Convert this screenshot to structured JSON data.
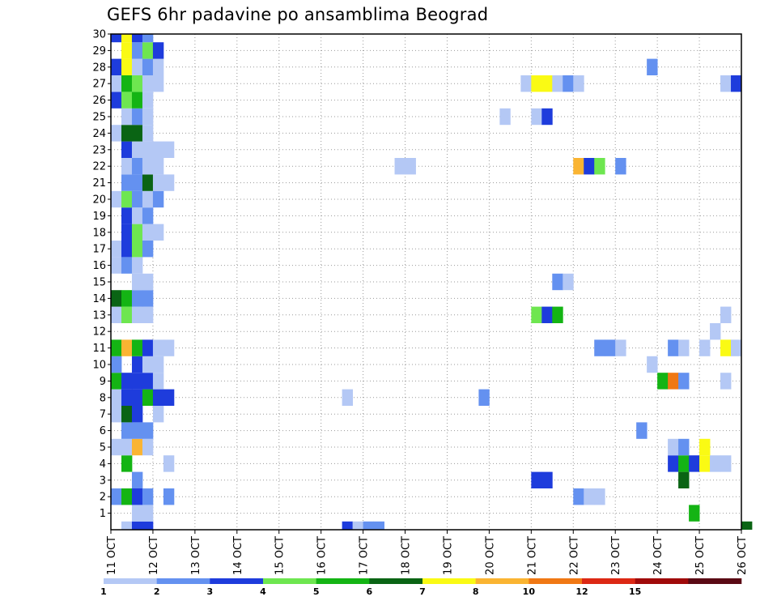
{
  "chart_data": {
    "type": "heatmap",
    "title": "GEFS 6hr padavine po ansamblima Beograd",
    "x_ticks": [
      "11 OCT",
      "12 OCT",
      "13 OCT",
      "14 OCT",
      "15 OCT",
      "16 OCT",
      "17 OCT",
      "18 OCT",
      "19 OCT",
      "20 OCT",
      "21 OCT",
      "22 OCT",
      "23 OCT",
      "24 OCT",
      "25 OCT",
      "26 OCT"
    ],
    "y_ticks": [
      "1",
      "2",
      "3",
      "4",
      "5",
      "6",
      "7",
      "8",
      "9",
      "10",
      "11",
      "12",
      "13",
      "14",
      "15",
      "16",
      "17",
      "18",
      "19",
      "20",
      "21",
      "22",
      "23",
      "24",
      "25",
      "26",
      "27",
      "28",
      "29",
      "30"
    ],
    "x_range": [
      "11 OCT",
      "26 OCT"
    ],
    "y_range": [
      0,
      30
    ],
    "time_step_hours": 6,
    "grid": "dotted",
    "legend": {
      "placement": "bottom",
      "levels": [
        "1",
        "2",
        "3",
        "4",
        "5",
        "6",
        "7",
        "8",
        "10",
        "12",
        "15",
        "20"
      ],
      "colors": [
        "#b4c8f5",
        "#6491f0",
        "#1e3cdc",
        "#6ee650",
        "#14b414",
        "#0a6414",
        "#fafa14",
        "#fab432",
        "#f07814",
        "#dc2814",
        "#a00a0a",
        "#5a0a14"
      ]
    },
    "cells": [
      {
        "member": 0,
        "t": 1,
        "c": 1
      },
      {
        "member": 0,
        "t": 2,
        "c": 3
      },
      {
        "member": 0,
        "t": 3,
        "c": 3
      },
      {
        "member": 0,
        "t": 22,
        "c": 3
      },
      {
        "member": 0,
        "t": 23,
        "c": 1
      },
      {
        "member": 0,
        "t": 24,
        "c": 2
      },
      {
        "member": 0,
        "t": 25,
        "c": 2
      },
      {
        "member": 0,
        "t": 60,
        "c": 6
      },
      {
        "member": 1,
        "t": 2,
        "c": 1
      },
      {
        "member": 1,
        "t": 3,
        "c": 1
      },
      {
        "member": 1,
        "t": 55,
        "c": 5
      },
      {
        "member": 2,
        "t": 0,
        "c": 2
      },
      {
        "member": 2,
        "t": 1,
        "c": 5
      },
      {
        "member": 2,
        "t": 2,
        "c": 3
      },
      {
        "member": 2,
        "t": 3,
        "c": 2
      },
      {
        "member": 2,
        "t": 5,
        "c": 2
      },
      {
        "member": 2,
        "t": 44,
        "c": 2
      },
      {
        "member": 2,
        "t": 45,
        "c": 1
      },
      {
        "member": 2,
        "t": 46,
        "c": 1
      },
      {
        "member": 3,
        "t": 2,
        "c": 2
      },
      {
        "member": 3,
        "t": 40,
        "c": 3
      },
      {
        "member": 3,
        "t": 41,
        "c": 3
      },
      {
        "member": 3,
        "t": 54,
        "c": 6
      },
      {
        "member": 4,
        "t": 1,
        "c": 5
      },
      {
        "member": 4,
        "t": 5,
        "c": 1
      },
      {
        "member": 4,
        "t": 53,
        "c": 3
      },
      {
        "member": 4,
        "t": 54,
        "c": 5
      },
      {
        "member": 4,
        "t": 55,
        "c": 3
      },
      {
        "member": 4,
        "t": 56,
        "c": 7
      },
      {
        "member": 4,
        "t": 57,
        "c": 1
      },
      {
        "member": 4,
        "t": 58,
        "c": 1
      },
      {
        "member": 5,
        "t": 0,
        "c": 1
      },
      {
        "member": 5,
        "t": 1,
        "c": 1
      },
      {
        "member": 5,
        "t": 2,
        "c": 8
      },
      {
        "member": 5,
        "t": 3,
        "c": 1
      },
      {
        "member": 5,
        "t": 53,
        "c": 1
      },
      {
        "member": 5,
        "t": 54,
        "c": 2
      },
      {
        "member": 5,
        "t": 56,
        "c": 7
      },
      {
        "member": 6,
        "t": 1,
        "c": 2
      },
      {
        "member": 6,
        "t": 2,
        "c": 2
      },
      {
        "member": 6,
        "t": 3,
        "c": 2
      },
      {
        "member": 6,
        "t": 50,
        "c": 2
      },
      {
        "member": 7,
        "t": 0,
        "c": 1
      },
      {
        "member": 7,
        "t": 1,
        "c": 6
      },
      {
        "member": 7,
        "t": 2,
        "c": 3
      },
      {
        "member": 7,
        "t": 4,
        "c": 1
      },
      {
        "member": 8,
        "t": 0,
        "c": 1
      },
      {
        "member": 8,
        "t": 1,
        "c": 3
      },
      {
        "member": 8,
        "t": 2,
        "c": 3
      },
      {
        "member": 8,
        "t": 3,
        "c": 5
      },
      {
        "member": 8,
        "t": 4,
        "c": 3
      },
      {
        "member": 8,
        "t": 5,
        "c": 3
      },
      {
        "member": 8,
        "t": 22,
        "c": 1
      },
      {
        "member": 8,
        "t": 35,
        "c": 2
      },
      {
        "member": 9,
        "t": 0,
        "c": 5
      },
      {
        "member": 9,
        "t": 1,
        "c": 3
      },
      {
        "member": 9,
        "t": 2,
        "c": 3
      },
      {
        "member": 9,
        "t": 3,
        "c": 3
      },
      {
        "member": 9,
        "t": 4,
        "c": 1
      },
      {
        "member": 9,
        "t": 52,
        "c": 5
      },
      {
        "member": 9,
        "t": 53,
        "c": 9
      },
      {
        "member": 9,
        "t": 54,
        "c": 2
      },
      {
        "member": 9,
        "t": 58,
        "c": 1
      },
      {
        "member": 10,
        "t": 0,
        "c": 2
      },
      {
        "member": 10,
        "t": 2,
        "c": 3
      },
      {
        "member": 10,
        "t": 3,
        "c": 1
      },
      {
        "member": 10,
        "t": 4,
        "c": 1
      },
      {
        "member": 10,
        "t": 51,
        "c": 1
      },
      {
        "member": 11,
        "t": 0,
        "c": 5
      },
      {
        "member": 11,
        "t": 1,
        "c": 8
      },
      {
        "member": 11,
        "t": 2,
        "c": 5
      },
      {
        "member": 11,
        "t": 3,
        "c": 3
      },
      {
        "member": 11,
        "t": 4,
        "c": 1
      },
      {
        "member": 11,
        "t": 5,
        "c": 1
      },
      {
        "member": 11,
        "t": 46,
        "c": 2
      },
      {
        "member": 11,
        "t": 47,
        "c": 2
      },
      {
        "member": 11,
        "t": 48,
        "c": 1
      },
      {
        "member": 11,
        "t": 53,
        "c": 2
      },
      {
        "member": 11,
        "t": 54,
        "c": 1
      },
      {
        "member": 11,
        "t": 56,
        "c": 1
      },
      {
        "member": 11,
        "t": 58,
        "c": 7
      },
      {
        "member": 11,
        "t": 59,
        "c": 1
      },
      {
        "member": 12,
        "t": 57,
        "c": 1
      },
      {
        "member": 13,
        "t": 0,
        "c": 1
      },
      {
        "member": 13,
        "t": 1,
        "c": 4
      },
      {
        "member": 13,
        "t": 2,
        "c": 1
      },
      {
        "member": 13,
        "t": 3,
        "c": 1
      },
      {
        "member": 13,
        "t": 40,
        "c": 4
      },
      {
        "member": 13,
        "t": 41,
        "c": 3
      },
      {
        "member": 13,
        "t": 42,
        "c": 5
      },
      {
        "member": 13,
        "t": 58,
        "c": 1
      },
      {
        "member": 14,
        "t": 0,
        "c": 6
      },
      {
        "member": 14,
        "t": 1,
        "c": 5
      },
      {
        "member": 14,
        "t": 2,
        "c": 2
      },
      {
        "member": 14,
        "t": 3,
        "c": 2
      },
      {
        "member": 15,
        "t": 2,
        "c": 1
      },
      {
        "member": 15,
        "t": 3,
        "c": 1
      },
      {
        "member": 15,
        "t": 42,
        "c": 2
      },
      {
        "member": 15,
        "t": 43,
        "c": 1
      },
      {
        "member": 16,
        "t": 0,
        "c": 1
      },
      {
        "member": 16,
        "t": 1,
        "c": 2
      },
      {
        "member": 16,
        "t": 2,
        "c": 1
      },
      {
        "member": 17,
        "t": 0,
        "c": 1
      },
      {
        "member": 17,
        "t": 1,
        "c": 3
      },
      {
        "member": 17,
        "t": 2,
        "c": 4
      },
      {
        "member": 17,
        "t": 3,
        "c": 2
      },
      {
        "member": 18,
        "t": 1,
        "c": 3
      },
      {
        "member": 18,
        "t": 2,
        "c": 4
      },
      {
        "member": 18,
        "t": 3,
        "c": 1
      },
      {
        "member": 18,
        "t": 4,
        "c": 1
      },
      {
        "member": 19,
        "t": 1,
        "c": 3
      },
      {
        "member": 19,
        "t": 2,
        "c": 1
      },
      {
        "member": 19,
        "t": 3,
        "c": 2
      },
      {
        "member": 20,
        "t": 0,
        "c": 1
      },
      {
        "member": 20,
        "t": 1,
        "c": 4
      },
      {
        "member": 20,
        "t": 2,
        "c": 2
      },
      {
        "member": 20,
        "t": 3,
        "c": 1
      },
      {
        "member": 20,
        "t": 4,
        "c": 2
      },
      {
        "member": 21,
        "t": 1,
        "c": 2
      },
      {
        "member": 21,
        "t": 2,
        "c": 2
      },
      {
        "member": 21,
        "t": 3,
        "c": 6
      },
      {
        "member": 21,
        "t": 4,
        "c": 1
      },
      {
        "member": 21,
        "t": 5,
        "c": 1
      },
      {
        "member": 22,
        "t": 1,
        "c": 1
      },
      {
        "member": 22,
        "t": 2,
        "c": 2
      },
      {
        "member": 22,
        "t": 3,
        "c": 1
      },
      {
        "member": 22,
        "t": 4,
        "c": 1
      },
      {
        "member": 22,
        "t": 27,
        "c": 1
      },
      {
        "member": 22,
        "t": 28,
        "c": 1
      },
      {
        "member": 22,
        "t": 44,
        "c": 8
      },
      {
        "member": 22,
        "t": 45,
        "c": 3
      },
      {
        "member": 22,
        "t": 46,
        "c": 4
      },
      {
        "member": 22,
        "t": 48,
        "c": 2
      },
      {
        "member": 23,
        "t": 1,
        "c": 3
      },
      {
        "member": 23,
        "t": 2,
        "c": 1
      },
      {
        "member": 23,
        "t": 3,
        "c": 1
      },
      {
        "member": 23,
        "t": 4,
        "c": 1
      },
      {
        "member": 23,
        "t": 5,
        "c": 1
      },
      {
        "member": 24,
        "t": 0,
        "c": 1
      },
      {
        "member": 24,
        "t": 1,
        "c": 6
      },
      {
        "member": 24,
        "t": 2,
        "c": 6
      },
      {
        "member": 24,
        "t": 3,
        "c": 1
      },
      {
        "member": 25,
        "t": 1,
        "c": 1
      },
      {
        "member": 25,
        "t": 2,
        "c": 2
      },
      {
        "member": 25,
        "t": 3,
        "c": 1
      },
      {
        "member": 25,
        "t": 37,
        "c": 1
      },
      {
        "member": 25,
        "t": 40,
        "c": 1
      },
      {
        "member": 25,
        "t": 41,
        "c": 3
      },
      {
        "member": 26,
        "t": 0,
        "c": 3
      },
      {
        "member": 26,
        "t": 1,
        "c": 4
      },
      {
        "member": 26,
        "t": 2,
        "c": 5
      },
      {
        "member": 26,
        "t": 3,
        "c": 1
      },
      {
        "member": 27,
        "t": 0,
        "c": 1
      },
      {
        "member": 27,
        "t": 1,
        "c": 5
      },
      {
        "member": 27,
        "t": 2,
        "c": 4
      },
      {
        "member": 27,
        "t": 3,
        "c": 1
      },
      {
        "member": 27,
        "t": 4,
        "c": 1
      },
      {
        "member": 27,
        "t": 39,
        "c": 1
      },
      {
        "member": 27,
        "t": 40,
        "c": 7
      },
      {
        "member": 27,
        "t": 41,
        "c": 7
      },
      {
        "member": 27,
        "t": 42,
        "c": 1
      },
      {
        "member": 27,
        "t": 43,
        "c": 2
      },
      {
        "member": 27,
        "t": 44,
        "c": 1
      },
      {
        "member": 27,
        "t": 58,
        "c": 1
      },
      {
        "member": 27,
        "t": 59,
        "c": 3
      },
      {
        "member": 28,
        "t": 0,
        "c": 3
      },
      {
        "member": 28,
        "t": 1,
        "c": 7
      },
      {
        "member": 28,
        "t": 2,
        "c": 1
      },
      {
        "member": 28,
        "t": 3,
        "c": 2
      },
      {
        "member": 28,
        "t": 4,
        "c": 1
      },
      {
        "member": 28,
        "t": 51,
        "c": 2
      },
      {
        "member": 29,
        "t": 1,
        "c": 7
      },
      {
        "member": 29,
        "t": 2,
        "c": 2
      },
      {
        "member": 29,
        "t": 3,
        "c": 4
      },
      {
        "member": 29,
        "t": 4,
        "c": 3
      },
      {
        "member": 30,
        "t": 0,
        "c": 3
      },
      {
        "member": 30,
        "t": 1,
        "c": 7
      },
      {
        "member": 30,
        "t": 2,
        "c": 3
      },
      {
        "member": 30,
        "t": 3,
        "c": 2
      },
      {
        "member": 31,
        "t": 0,
        "c": 1
      },
      {
        "member": 31,
        "t": 1,
        "c": 2
      },
      {
        "member": 31,
        "t": 2,
        "c": 3
      },
      {
        "member": 31,
        "t": 3,
        "c": 1
      },
      {
        "member": 31,
        "t": 5,
        "c": 1
      },
      {
        "member": 31,
        "t": 42,
        "c": 6
      }
    ]
  }
}
